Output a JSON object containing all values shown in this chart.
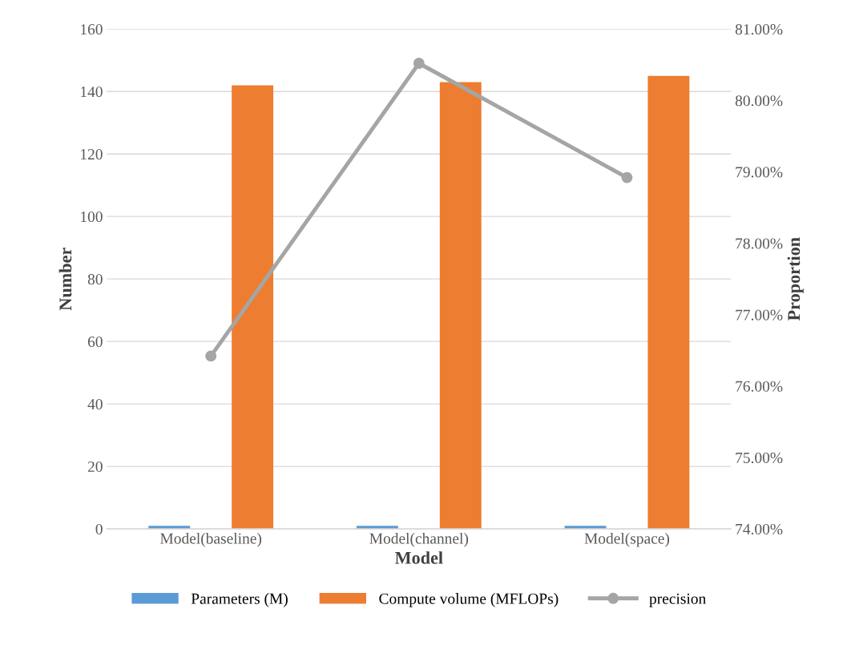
{
  "chart_data": {
    "type": "bar",
    "xlabel": "Model",
    "ylabel": "Number",
    "y2label": "Proportion",
    "categories": [
      "Model(baseline)",
      "Model(channel)",
      "Model(space)"
    ],
    "series": [
      {
        "name": "Parameters (M)",
        "color": "#5b9bd5",
        "values": [
          1,
          1,
          1
        ]
      },
      {
        "name": "Compute volume (MFLOPs)",
        "color": "#ed7d31",
        "values": [
          142,
          143,
          145
        ]
      },
      {
        "name": "precision",
        "type": "line",
        "axis": "y2",
        "color": "#a5a5a5",
        "values": [
          76.42,
          80.52,
          78.92
        ]
      }
    ],
    "ylim": [
      0,
      160
    ],
    "yticks": [
      0,
      20,
      40,
      60,
      80,
      100,
      120,
      140,
      160
    ],
    "y2lim": [
      74,
      81
    ],
    "y2ticks": [
      {
        "value": 74,
        "label": "74.00%"
      },
      {
        "value": 75,
        "label": "75.00%"
      },
      {
        "value": 76,
        "label": "76.00%"
      },
      {
        "value": 77,
        "label": "77.00%"
      },
      {
        "value": 78,
        "label": "78.00%"
      },
      {
        "value": 79,
        "label": "79.00%"
      },
      {
        "value": 80,
        "label": "80.00%"
      },
      {
        "value": 81,
        "label": "81.00%"
      }
    ],
    "grid": "y",
    "legend": "bottom",
    "marker": "circle"
  }
}
